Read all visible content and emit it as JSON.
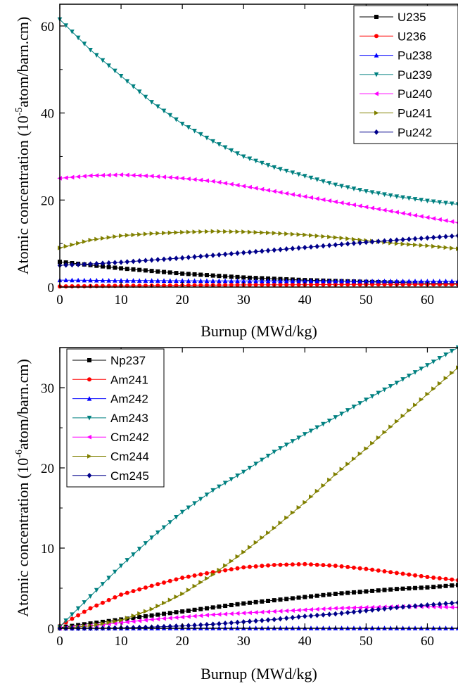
{
  "chart_data": [
    {
      "type": "line",
      "title": "",
      "xlabel": "Burnup (MWd/kg)",
      "ylabel_prefix": "Atomic concentration (10",
      "ylabel_exp": "-5",
      "ylabel_suffix": "atom/barn.cm)",
      "xlim": [
        0,
        65
      ],
      "ylim": [
        0,
        65
      ],
      "xticks": [
        "0",
        "10",
        "20",
        "30",
        "40",
        "50",
        "60"
      ],
      "yticks": [
        "0",
        "20",
        "40",
        "60"
      ],
      "legend_position": "top-right",
      "grid": false,
      "series": [
        {
          "name": "U235",
          "color": "#000000",
          "marker": "square",
          "x": [
            0,
            10,
            20,
            30,
            40,
            50,
            60,
            65
          ],
          "y": [
            5.8,
            4.3,
            3.1,
            2.2,
            1.6,
            1.2,
            0.9,
            0.8
          ]
        },
        {
          "name": "U236",
          "color": "#ff0000",
          "marker": "circle",
          "x": [
            0,
            10,
            20,
            30,
            40,
            50,
            60,
            65
          ],
          "y": [
            0.15,
            0.3,
            0.4,
            0.5,
            0.55,
            0.6,
            0.62,
            0.64
          ]
        },
        {
          "name": "Pu238",
          "color": "#0000ff",
          "marker": "triangle-up",
          "x": [
            0,
            10,
            20,
            30,
            40,
            50,
            60,
            65
          ],
          "y": [
            1.6,
            1.5,
            1.45,
            1.4,
            1.4,
            1.35,
            1.35,
            1.35
          ]
        },
        {
          "name": "Pu239",
          "color": "#008080",
          "marker": "triangle-down",
          "x": [
            0,
            5,
            10,
            15,
            20,
            25,
            30,
            35,
            40,
            45,
            50,
            55,
            60,
            65
          ],
          "y": [
            61.5,
            54.5,
            48.5,
            42.5,
            37.5,
            33.5,
            30.0,
            27.5,
            25.5,
            23.5,
            22.0,
            20.8,
            19.8,
            19.0
          ]
        },
        {
          "name": "Pu240",
          "color": "#ff00ff",
          "marker": "triangle-left",
          "x": [
            0,
            5,
            10,
            15,
            20,
            25,
            30,
            35,
            40,
            45,
            50,
            55,
            60,
            65
          ],
          "y": [
            25.0,
            25.6,
            25.8,
            25.5,
            25.0,
            24.3,
            23.2,
            22.0,
            20.8,
            19.6,
            18.4,
            17.2,
            16.0,
            14.8
          ]
        },
        {
          "name": "Pu241",
          "color": "#808000",
          "marker": "triangle-right",
          "x": [
            0,
            5,
            10,
            15,
            20,
            25,
            30,
            35,
            40,
            45,
            50,
            55,
            60,
            65
          ],
          "y": [
            9.0,
            10.8,
            11.8,
            12.3,
            12.6,
            12.8,
            12.7,
            12.4,
            12.0,
            11.4,
            10.7,
            10.0,
            9.5,
            8.8
          ]
        },
        {
          "name": "Pu242",
          "color": "#00008b",
          "marker": "diamond",
          "x": [
            0,
            5,
            10,
            15,
            20,
            25,
            30,
            35,
            40,
            45,
            50,
            55,
            60,
            65
          ],
          "y": [
            5.0,
            5.3,
            5.7,
            6.2,
            6.7,
            7.3,
            7.9,
            8.5,
            9.1,
            9.7,
            10.3,
            10.8,
            11.3,
            11.8
          ]
        }
      ]
    },
    {
      "type": "line",
      "title": "",
      "xlabel": "Burnup (MWd/kg)",
      "ylabel_prefix": "Atomic concentration (10",
      "ylabel_exp": "-6",
      "ylabel_suffix": "atom/barn.cm)",
      "xlim": [
        0,
        65
      ],
      "ylim": [
        0,
        35
      ],
      "xticks": [
        "0",
        "10",
        "20",
        "30",
        "40",
        "50",
        "60"
      ],
      "yticks": [
        "0",
        "10",
        "20",
        "30"
      ],
      "legend_position": "top-left",
      "grid": false,
      "series": [
        {
          "name": "Np237",
          "color": "#000000",
          "marker": "square",
          "x": [
            0,
            5,
            10,
            15,
            20,
            25,
            30,
            35,
            40,
            45,
            50,
            55,
            60,
            65
          ],
          "y": [
            0.1,
            0.6,
            1.1,
            1.6,
            2.1,
            2.6,
            3.1,
            3.5,
            3.9,
            4.3,
            4.6,
            4.9,
            5.1,
            5.4
          ]
        },
        {
          "name": "Am241",
          "color": "#ff0000",
          "marker": "circle",
          "x": [
            0,
            5,
            10,
            15,
            20,
            25,
            30,
            35,
            40,
            45,
            50,
            55,
            60,
            65
          ],
          "y": [
            0.3,
            2.5,
            4.2,
            5.3,
            6.3,
            7.0,
            7.6,
            7.9,
            8.0,
            7.8,
            7.4,
            6.9,
            6.4,
            6.0
          ]
        },
        {
          "name": "Am242",
          "color": "#0000ff",
          "marker": "triangle-up",
          "x": [
            0,
            10,
            20,
            30,
            40,
            50,
            60,
            65
          ],
          "y": [
            0.0,
            0.01,
            0.02,
            0.02,
            0.02,
            0.02,
            0.02,
            0.02
          ]
        },
        {
          "name": "Am243",
          "color": "#008080",
          "marker": "triangle-down",
          "x": [
            0,
            5,
            10,
            15,
            20,
            25,
            30,
            35,
            40,
            45,
            50,
            55,
            60,
            65
          ],
          "y": [
            0.2,
            4.0,
            7.8,
            11.3,
            14.5,
            17.2,
            19.5,
            22.0,
            24.2,
            26.3,
            28.5,
            30.6,
            32.8,
            35.0
          ]
        },
        {
          "name": "Cm242",
          "color": "#ff00ff",
          "marker": "triangle-left",
          "x": [
            0,
            5,
            10,
            15,
            20,
            25,
            30,
            35,
            40,
            45,
            50,
            55,
            60,
            65
          ],
          "y": [
            0.0,
            0.3,
            0.7,
            1.1,
            1.4,
            1.7,
            1.9,
            2.1,
            2.3,
            2.5,
            2.6,
            2.7,
            2.7,
            2.6
          ]
        },
        {
          "name": "Cm244",
          "color": "#808000",
          "marker": "triangle-right",
          "x": [
            0,
            5,
            10,
            15,
            20,
            25,
            30,
            35,
            40,
            45,
            50,
            55,
            60,
            65
          ],
          "y": [
            0.0,
            0.3,
            1.0,
            2.4,
            4.3,
            6.7,
            9.5,
            12.5,
            15.7,
            19.2,
            22.4,
            25.8,
            29.2,
            32.5
          ]
        },
        {
          "name": "Cm245",
          "color": "#00008b",
          "marker": "diamond",
          "x": [
            0,
            5,
            10,
            15,
            20,
            25,
            30,
            35,
            40,
            45,
            50,
            55,
            60,
            65
          ],
          "y": [
            0.0,
            0.0,
            0.05,
            0.15,
            0.3,
            0.5,
            0.8,
            1.1,
            1.5,
            1.8,
            2.2,
            2.6,
            2.9,
            3.2
          ]
        }
      ]
    }
  ]
}
